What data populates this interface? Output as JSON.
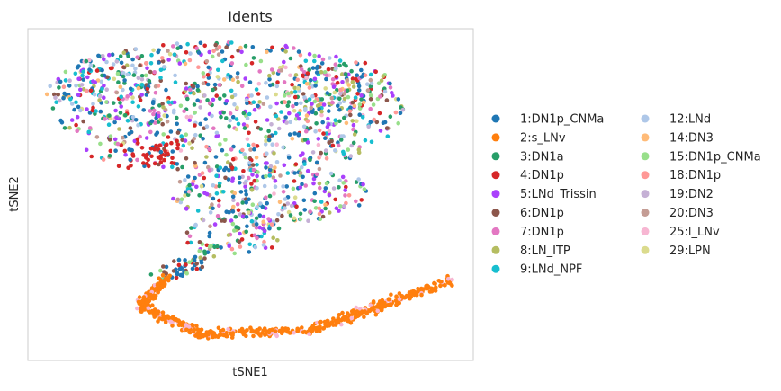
{
  "chart_data": {
    "type": "scatter",
    "title": "Idents",
    "xlabel": "tSNE1",
    "ylabel": "tSNE2",
    "xticks": [],
    "yticks": [],
    "grid": false,
    "legend_position": "right, two columns",
    "series": [
      {
        "name": "1:DN1p_CNMa",
        "color": "#1f77b4"
      },
      {
        "name": "2:s_LNv",
        "color": "#ff7f0e"
      },
      {
        "name": "3:DN1a",
        "color": "#279e68"
      },
      {
        "name": "4:DN1p",
        "color": "#d62728"
      },
      {
        "name": "5:LNd_Trissin",
        "color": "#aa40fc"
      },
      {
        "name": "6:DN1p",
        "color": "#8c564b"
      },
      {
        "name": "7:DN1p",
        "color": "#e377c2"
      },
      {
        "name": "8:LN_ITP",
        "color": "#b5bd61"
      },
      {
        "name": "9:LNd_NPF",
        "color": "#17becf"
      },
      {
        "name": "12:LNd",
        "color": "#aec7e8"
      },
      {
        "name": "14:DN3",
        "color": "#ffbb78"
      },
      {
        "name": "15:DN1p_CNMa",
        "color": "#98df8a"
      },
      {
        "name": "18:DN1p",
        "color": "#ff9896"
      },
      {
        "name": "19:DN2",
        "color": "#c5b0d5"
      },
      {
        "name": "20:DN3",
        "color": "#c49c94"
      },
      {
        "name": "25:l_LNv",
        "color": "#f7b6d2"
      },
      {
        "name": "29:LPN",
        "color": "#dbdb8d"
      }
    ]
  }
}
